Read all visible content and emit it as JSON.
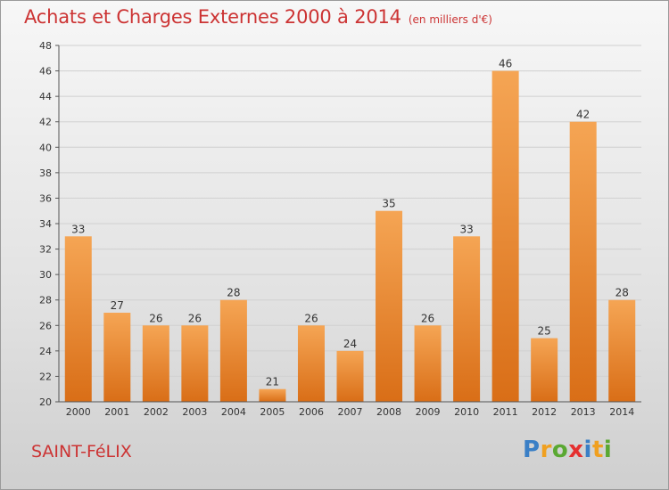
{
  "title": "Achats et Charges Externes 2000 à 2014",
  "subtitle": "(en milliers d'€)",
  "commune": "SAINT-FéLIX",
  "brand": {
    "letters": [
      "P",
      "r",
      "o",
      "x",
      "i",
      "t",
      "i"
    ],
    "colors": [
      "#3a7fc6",
      "#f0a020",
      "#5aa832",
      "#e53030",
      "#3a7fc6",
      "#f0a020",
      "#5aa832"
    ]
  },
  "colors": {
    "bar_top": "#f5a554",
    "bar_bottom": "#d96e17",
    "title": "#cc3333"
  },
  "chart_data": {
    "type": "bar",
    "categories": [
      "2000",
      "2001",
      "2002",
      "2003",
      "2004",
      "2005",
      "2006",
      "2007",
      "2008",
      "2009",
      "2010",
      "2011",
      "2012",
      "2013",
      "2014"
    ],
    "values": [
      33,
      27,
      26,
      26,
      28,
      21,
      26,
      24,
      35,
      26,
      33,
      46,
      25,
      42,
      28
    ],
    "ylim": [
      20,
      48
    ],
    "yticks": [
      20,
      22,
      24,
      26,
      28,
      30,
      32,
      34,
      36,
      38,
      40,
      42,
      44,
      46,
      48
    ],
    "grid": true,
    "data_labels": true
  }
}
